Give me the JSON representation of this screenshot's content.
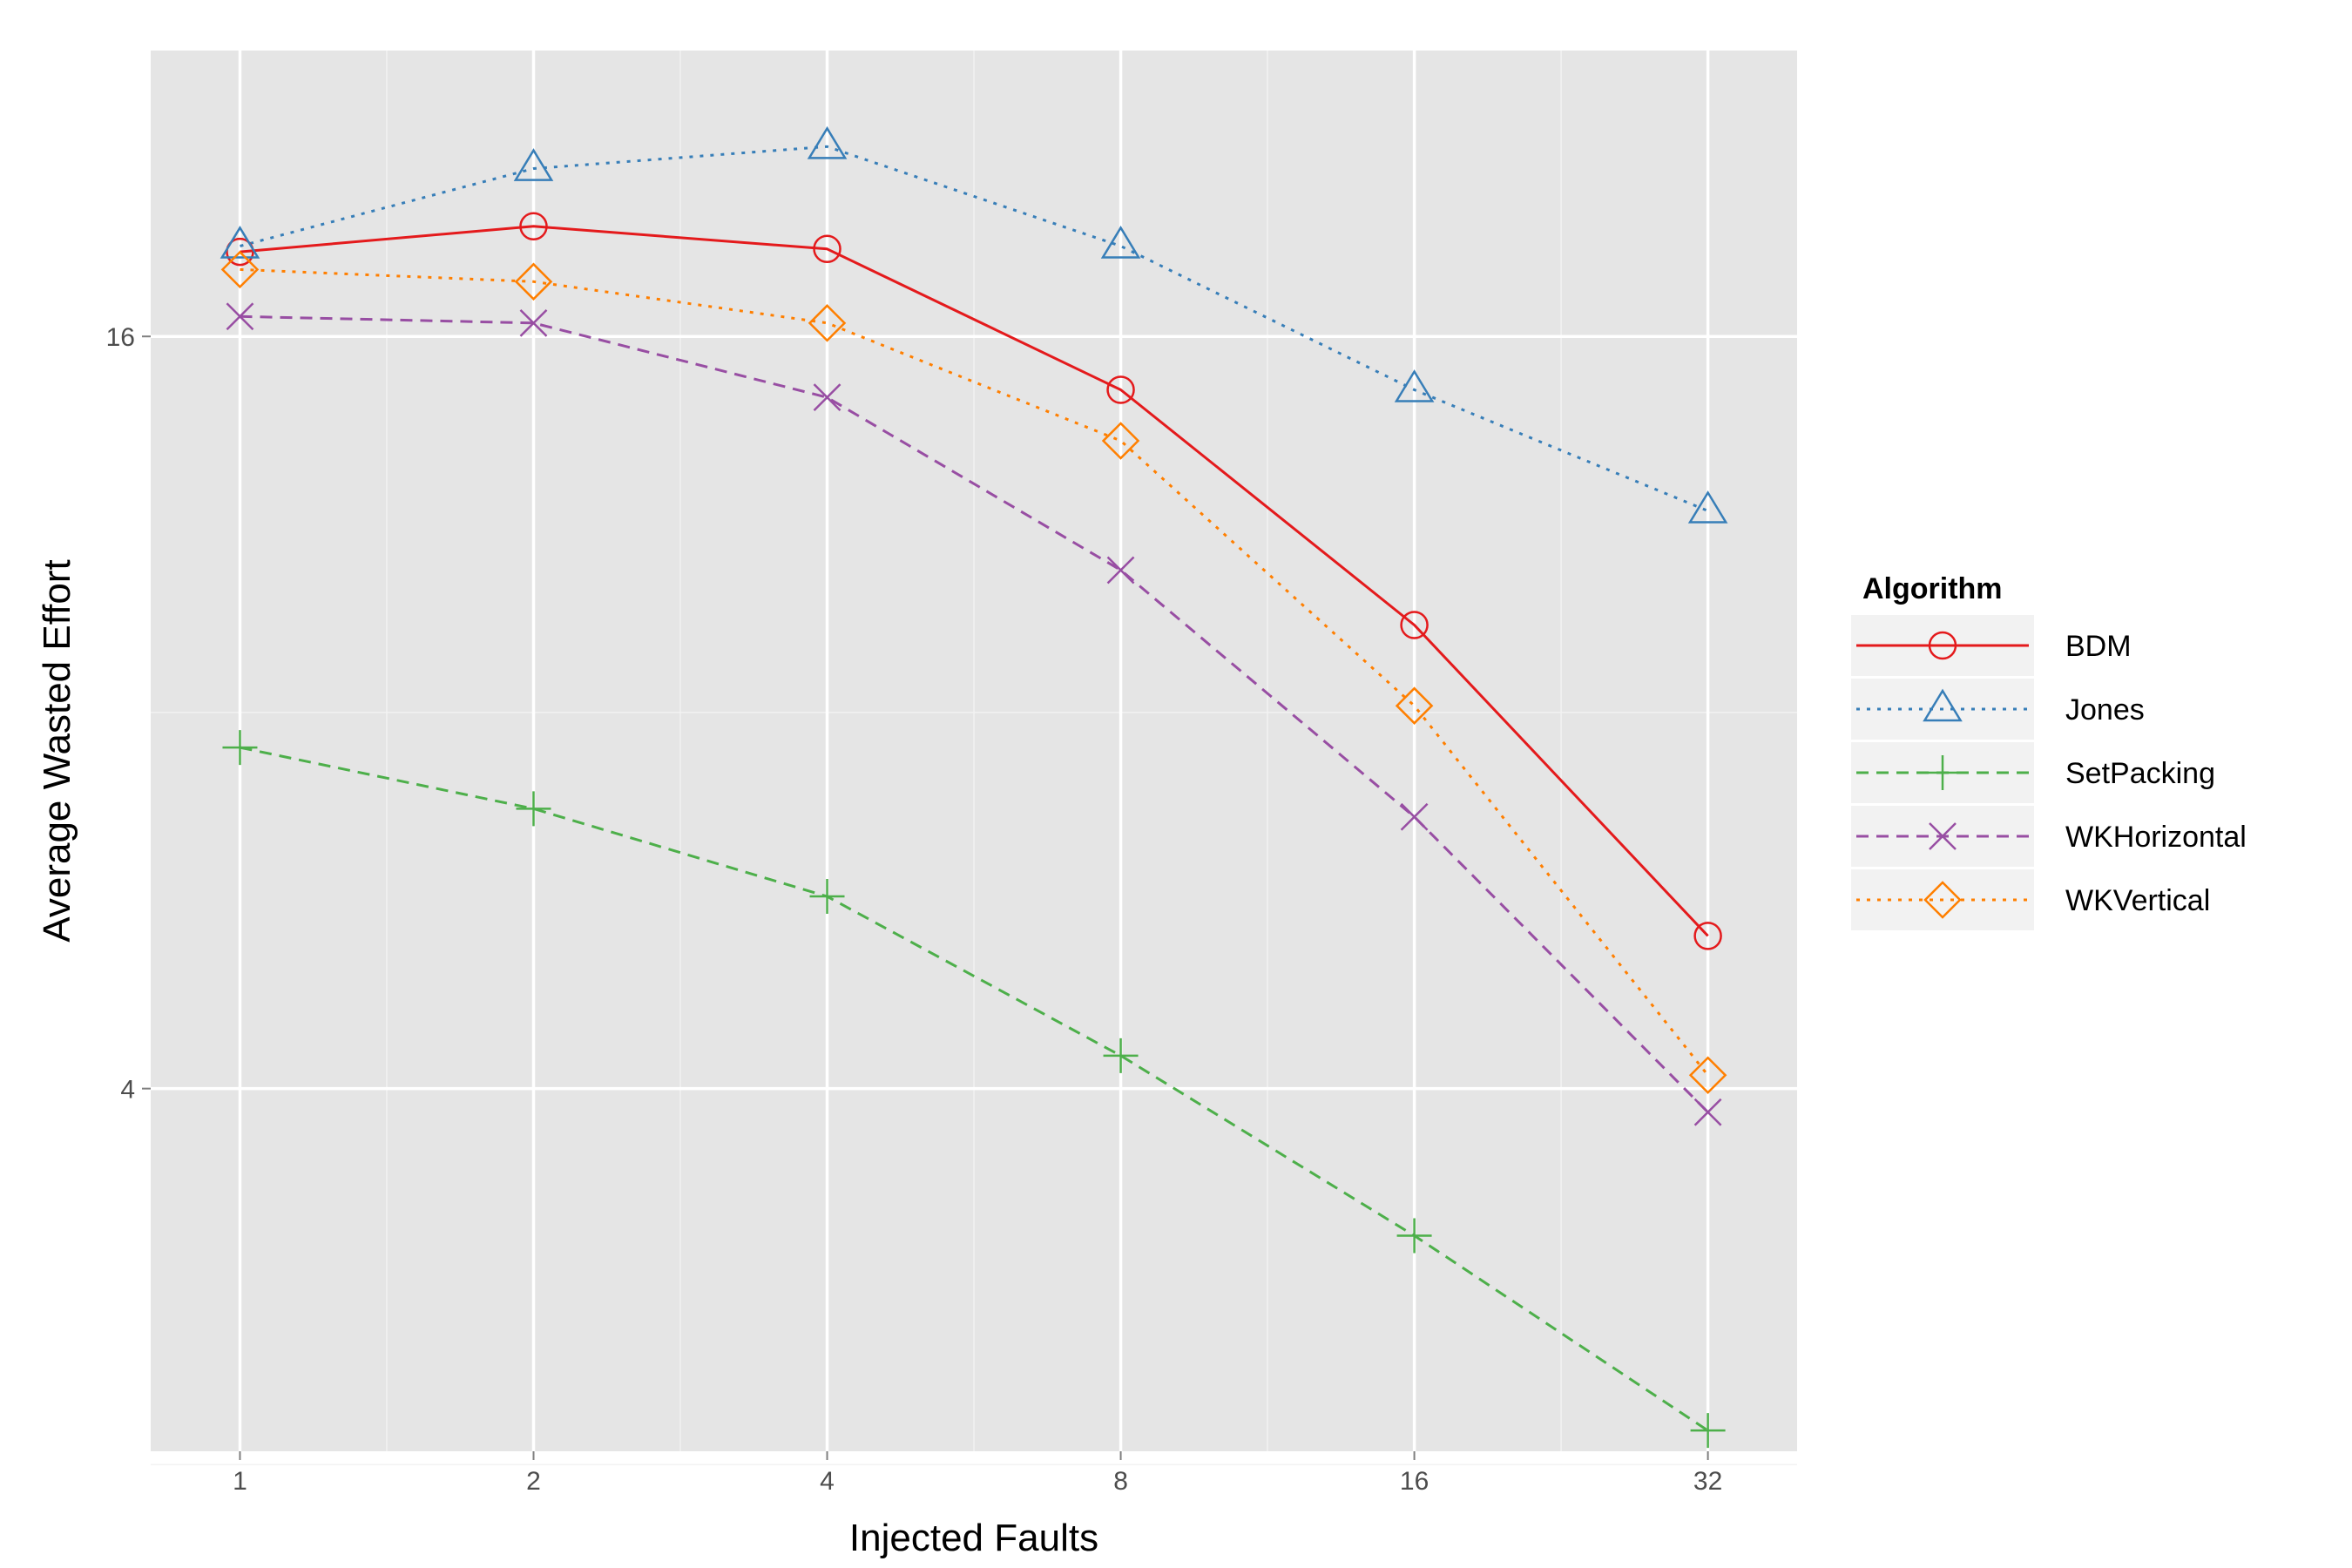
{
  "chart_data": {
    "type": "line",
    "xlabel": "Injected Faults",
    "ylabel": "Average Wasted Effort",
    "x_scale": "log2",
    "y_scale": "log2",
    "x": [
      1,
      2,
      4,
      8,
      16,
      32
    ],
    "x_tick_labels": [
      "1",
      "2",
      "4",
      "8",
      "16",
      "32"
    ],
    "y_ticks": [
      4,
      16
    ],
    "y_tick_labels": [
      "4",
      "16"
    ],
    "xlim": [
      0.81,
      39.5
    ],
    "ylim": [
      2.05,
      27.1
    ],
    "grid": true,
    "legend": {
      "title": "Algorithm",
      "placement": "right"
    },
    "series": [
      {
        "name": "BDM",
        "color": "#E41A1C",
        "marker": "circle",
        "dash": "solid",
        "values": [
          18.7,
          19.6,
          18.8,
          14.5,
          9.4,
          5.3
        ]
      },
      {
        "name": "Jones",
        "color": "#377EB8",
        "marker": "triangle",
        "dash": "dotted",
        "values": [
          18.9,
          21.8,
          22.7,
          18.9,
          14.5,
          11.6
        ]
      },
      {
        "name": "SetPacking",
        "color": "#4DAF4A",
        "marker": "plus",
        "dash": "dashed",
        "values": [
          7.5,
          6.7,
          5.7,
          4.25,
          3.05,
          2.13
        ]
      },
      {
        "name": "WKHorizontal",
        "color": "#984EA3",
        "marker": "x",
        "dash": "dashed",
        "values": [
          16.6,
          16.4,
          14.3,
          10.4,
          6.6,
          3.83
        ]
      },
      {
        "name": "WKVertical",
        "color": "#FF7F00",
        "marker": "diamond",
        "dash": "dotted",
        "values": [
          18.1,
          17.7,
          16.4,
          13.2,
          8.1,
          4.1
        ]
      }
    ]
  }
}
